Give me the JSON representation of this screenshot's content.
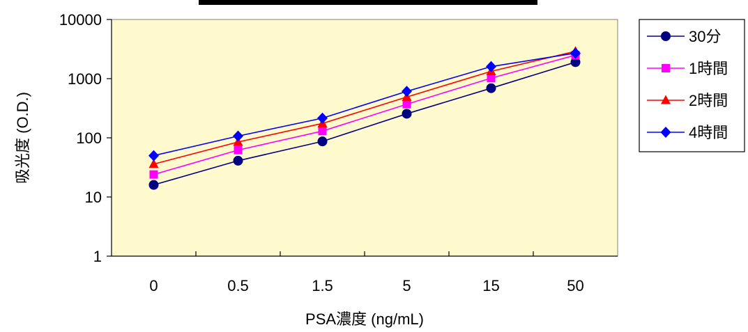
{
  "chart_data": {
    "type": "line",
    "title": "",
    "xlabel": "PSA濃度 (ng/mL)",
    "ylabel": "吸光度 (O.D.)",
    "categories": [
      "0",
      "0.5",
      "1.5",
      "5",
      "15",
      "50"
    ],
    "y_scale": "log",
    "ylim": [
      1,
      10000
    ],
    "y_ticks": [
      "1",
      "10",
      "100",
      "1000",
      "10000"
    ],
    "grid": false,
    "legend_position": "right",
    "plot_background": "#fffacd",
    "series": [
      {
        "name": "30分",
        "color": "#000080",
        "marker": "circle",
        "values": [
          16,
          41,
          87,
          255,
          690,
          1900
        ]
      },
      {
        "name": "1時間",
        "color": "#ff00ff",
        "marker": "square",
        "values": [
          24,
          62,
          130,
          370,
          1020,
          2500
        ]
      },
      {
        "name": "2時間",
        "color": "#ff0000",
        "marker": "triangle",
        "values": [
          36,
          85,
          175,
          490,
          1330,
          2900
        ]
      },
      {
        "name": "4時間",
        "color": "#0000ff",
        "marker": "diamond",
        "values": [
          50,
          107,
          215,
          610,
          1600,
          2700
        ]
      }
    ]
  }
}
